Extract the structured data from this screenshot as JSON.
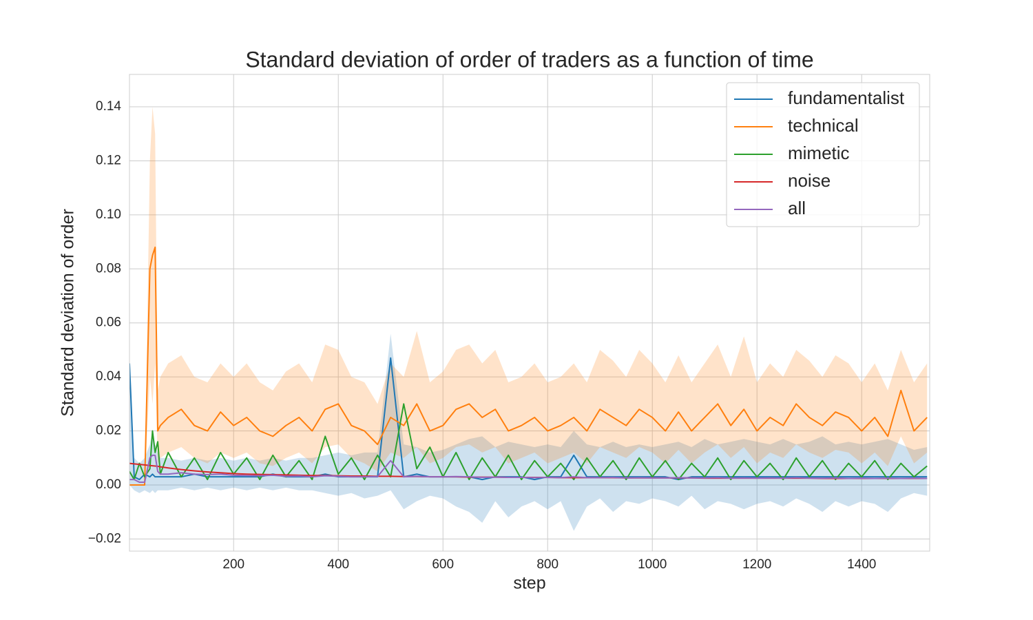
{
  "chart_data": {
    "type": "line",
    "title": "Standard deviation of order of traders as a function of time",
    "xlabel": "step",
    "ylabel": "Standard deviation of order",
    "xlim": [
      1,
      1530
    ],
    "ylim": [
      -0.0245,
      0.152
    ],
    "xticks": [
      200,
      400,
      600,
      800,
      1000,
      1200,
      1400
    ],
    "yticks": [
      {
        "value": -0.02,
        "label": "−0.02"
      },
      {
        "value": 0,
        "label": "0.00"
      },
      0.02,
      0.04,
      0.06,
      0.08,
      {
        "value": 0.1,
        "label": "0.10"
      },
      0.12,
      0.14
    ],
    "grid": true,
    "legend": "upper right",
    "x": [
      1,
      10,
      20,
      30,
      40,
      45,
      50,
      55,
      60,
      75,
      100,
      125,
      150,
      175,
      200,
      225,
      250,
      275,
      300,
      325,
      350,
      375,
      400,
      425,
      450,
      475,
      500,
      525,
      550,
      575,
      600,
      625,
      650,
      675,
      700,
      725,
      750,
      775,
      800,
      825,
      850,
      875,
      900,
      925,
      950,
      975,
      1000,
      1025,
      1050,
      1075,
      1100,
      1125,
      1150,
      1175,
      1200,
      1225,
      1250,
      1275,
      1300,
      1325,
      1350,
      1375,
      1400,
      1425,
      1450,
      1475,
      1500,
      1525
    ],
    "series": [
      {
        "name": "fundamentalist",
        "color": "#1f77b4",
        "values": [
          0.045,
          0.003,
          0.002,
          0.004,
          0.003,
          0.004,
          0.003,
          0.003,
          0.003,
          0.003,
          0.003,
          0.004,
          0.003,
          0.003,
          0.003,
          0.003,
          0.003,
          0.004,
          0.003,
          0.003,
          0.003,
          0.004,
          0.003,
          0.003,
          0.003,
          0.003,
          0.047,
          0.003,
          0.004,
          0.003,
          0.003,
          0.003,
          0.003,
          0.002,
          0.003,
          0.003,
          0.003,
          0.002,
          0.003,
          0.003,
          0.011,
          0.003,
          0.003,
          0.003,
          0.003,
          0.003,
          0.003,
          0.003,
          0.002,
          0.003,
          0.003,
          0.003,
          0.003,
          0.003,
          0.003,
          0.003,
          0.003,
          0.003,
          0.003,
          0.003,
          0.003,
          0.003,
          0.003,
          0.003,
          0.003,
          0.003,
          0.003,
          0.003
        ],
        "lower": [
          0,
          -0.002,
          -0.003,
          -0.002,
          -0.003,
          -0.002,
          -0.003,
          -0.002,
          -0.002,
          -0.002,
          -0.001,
          -0.002,
          -0.001,
          -0.002,
          -0.001,
          -0.002,
          -0.001,
          -0.002,
          -0.001,
          -0.002,
          -0.002,
          -0.003,
          -0.004,
          -0.003,
          -0.005,
          -0.004,
          -0.002,
          -0.009,
          -0.006,
          -0.004,
          -0.005,
          -0.008,
          -0.01,
          -0.014,
          -0.006,
          -0.012,
          -0.008,
          -0.006,
          -0.009,
          -0.006,
          -0.017,
          -0.008,
          -0.005,
          -0.01,
          -0.006,
          -0.007,
          -0.005,
          -0.006,
          -0.008,
          -0.004,
          -0.009,
          -0.006,
          -0.007,
          -0.009,
          -0.007,
          -0.006,
          -0.008,
          -0.005,
          -0.007,
          -0.01,
          -0.006,
          -0.008,
          -0.006,
          -0.007,
          -0.01,
          -0.005,
          -0.003,
          -0.004
        ],
        "upper": [
          0.045,
          0.01,
          0.008,
          0.01,
          0.015,
          0.02,
          0.015,
          0.012,
          0.01,
          0.01,
          0.009,
          0.01,
          0.009,
          0.01,
          0.009,
          0.01,
          0.009,
          0.01,
          0.009,
          0.01,
          0.01,
          0.011,
          0.012,
          0.011,
          0.012,
          0.012,
          0.056,
          0.015,
          0.014,
          0.012,
          0.013,
          0.015,
          0.017,
          0.018,
          0.014,
          0.016,
          0.015,
          0.014,
          0.015,
          0.014,
          0.02,
          0.015,
          0.014,
          0.016,
          0.014,
          0.015,
          0.014,
          0.015,
          0.016,
          0.014,
          0.017,
          0.015,
          0.016,
          0.017,
          0.016,
          0.015,
          0.017,
          0.015,
          0.016,
          0.018,
          0.015,
          0.016,
          0.015,
          0.016,
          0.017,
          0.015,
          0.013,
          0.014
        ]
      },
      {
        "name": "technical",
        "color": "#ff7f0e",
        "values": [
          0,
          0,
          0,
          0,
          0.08,
          0.085,
          0.088,
          0.02,
          0.022,
          0.025,
          0.028,
          0.022,
          0.02,
          0.027,
          0.022,
          0.025,
          0.02,
          0.018,
          0.022,
          0.025,
          0.02,
          0.028,
          0.03,
          0.022,
          0.02,
          0.015,
          0.025,
          0.022,
          0.03,
          0.02,
          0.022,
          0.028,
          0.03,
          0.025,
          0.028,
          0.02,
          0.022,
          0.025,
          0.02,
          0.022,
          0.025,
          0.02,
          0.028,
          0.025,
          0.022,
          0.028,
          0.025,
          0.02,
          0.027,
          0.02,
          0.025,
          0.03,
          0.022,
          0.028,
          0.02,
          0.025,
          0.022,
          0.03,
          0.025,
          0.022,
          0.027,
          0.025,
          0.02,
          0.025,
          0.018,
          0.035,
          0.02,
          0.025
        ],
        "lower": [
          0,
          0,
          0,
          0,
          0.04,
          0.03,
          0.045,
          0.008,
          0.01,
          0.012,
          0.014,
          0.01,
          0.008,
          0.012,
          0.01,
          0.012,
          0.008,
          0.007,
          0.01,
          0.012,
          0.008,
          0.014,
          0.015,
          0.01,
          0.008,
          0.005,
          0.012,
          0.01,
          0.014,
          0.008,
          0.01,
          0.014,
          0.015,
          0.012,
          0.014,
          0.008,
          0.01,
          0.012,
          0.008,
          0.01,
          0.012,
          0.008,
          0.014,
          0.012,
          0.01,
          0.014,
          0.012,
          0.008,
          0.013,
          0.008,
          0.012,
          0.015,
          0.01,
          0.014,
          0.008,
          0.012,
          0.01,
          0.015,
          0.012,
          0.01,
          0.013,
          0.012,
          0.008,
          0.012,
          0.007,
          0.018,
          0.008,
          0.012
        ],
        "upper": [
          0,
          0,
          0,
          0,
          0.12,
          0.14,
          0.13,
          0.035,
          0.04,
          0.045,
          0.048,
          0.04,
          0.038,
          0.045,
          0.04,
          0.045,
          0.038,
          0.035,
          0.042,
          0.045,
          0.038,
          0.052,
          0.05,
          0.04,
          0.038,
          0.03,
          0.045,
          0.04,
          0.057,
          0.038,
          0.042,
          0.05,
          0.052,
          0.045,
          0.05,
          0.038,
          0.04,
          0.045,
          0.038,
          0.04,
          0.045,
          0.038,
          0.05,
          0.046,
          0.04,
          0.05,
          0.045,
          0.038,
          0.048,
          0.038,
          0.045,
          0.052,
          0.04,
          0.055,
          0.038,
          0.045,
          0.04,
          0.05,
          0.046,
          0.04,
          0.048,
          0.045,
          0.038,
          0.045,
          0.035,
          0.05,
          0.038,
          0.045
        ]
      },
      {
        "name": "mimetic",
        "color": "#2ca02c",
        "values": [
          0.005,
          0.002,
          0.008,
          0.003,
          0.006,
          0.02,
          0.012,
          0.016,
          0.004,
          0.012,
          0.003,
          0.01,
          0.002,
          0.012,
          0.004,
          0.01,
          0.002,
          0.011,
          0.003,
          0.009,
          0.002,
          0.018,
          0.004,
          0.01,
          0.002,
          0.011,
          0.003,
          0.03,
          0.006,
          0.014,
          0.003,
          0.012,
          0.002,
          0.01,
          0.003,
          0.011,
          0.002,
          0.009,
          0.003,
          0.008,
          0.002,
          0.01,
          0.003,
          0.009,
          0.002,
          0.01,
          0.003,
          0.009,
          0.002,
          0.008,
          0.003,
          0.01,
          0.002,
          0.009,
          0.003,
          0.008,
          0.002,
          0.01,
          0.003,
          0.009,
          0.002,
          0.008,
          0.003,
          0.009,
          0.002,
          0.008,
          0.003,
          0.007
        ]
      },
      {
        "name": "noise",
        "color": "#d62728",
        "values": [
          0.008,
          0.0078,
          0.0076,
          0.0074,
          0.0072,
          0.0071,
          0.007,
          0.0069,
          0.0067,
          0.0063,
          0.0057,
          0.0052,
          0.0048,
          0.0045,
          0.0042,
          0.004,
          0.0039,
          0.0038,
          0.0037,
          0.0036,
          0.0035,
          0.0035,
          0.0034,
          0.0033,
          0.0033,
          0.0032,
          0.0032,
          0.0031,
          0.0031,
          0.003,
          0.003,
          0.003,
          0.0029,
          0.0029,
          0.0029,
          0.0028,
          0.0028,
          0.0028,
          0.0028,
          0.0027,
          0.0027,
          0.0027,
          0.0027,
          0.0027,
          0.0026,
          0.0026,
          0.0026,
          0.0026,
          0.0026,
          0.0026,
          0.0025,
          0.0025,
          0.0025,
          0.0025,
          0.0025,
          0.0025,
          0.0025,
          0.0025,
          0.0025,
          0.0024,
          0.0024,
          0.0024,
          0.0024,
          0.0024,
          0.0024,
          0.0024,
          0.0024,
          0.0024
        ]
      },
      {
        "name": "all",
        "color": "#9467bd",
        "values": [
          0.002,
          0.002,
          0.001,
          0.001,
          0.01,
          0.011,
          0.011,
          0.005,
          0.004,
          0.004,
          0.0045,
          0.004,
          0.0038,
          0.004,
          0.0036,
          0.0035,
          0.0034,
          0.0036,
          0.0032,
          0.0033,
          0.003,
          0.0034,
          0.0032,
          0.003,
          0.003,
          0.0031,
          0.009,
          0.003,
          0.0032,
          0.003,
          0.003,
          0.0031,
          0.003,
          0.0028,
          0.0029,
          0.0028,
          0.0028,
          0.0027,
          0.0028,
          0.0027,
          0.003,
          0.0027,
          0.0027,
          0.0028,
          0.0026,
          0.0027,
          0.0026,
          0.0026,
          0.0027,
          0.0026,
          0.0026,
          0.0027,
          0.0025,
          0.0026,
          0.0025,
          0.0026,
          0.0025,
          0.0027,
          0.0025,
          0.0025,
          0.0026,
          0.0024,
          0.0025,
          0.0024,
          0.0025,
          0.0024,
          0.0025,
          0.0024
        ]
      }
    ]
  }
}
